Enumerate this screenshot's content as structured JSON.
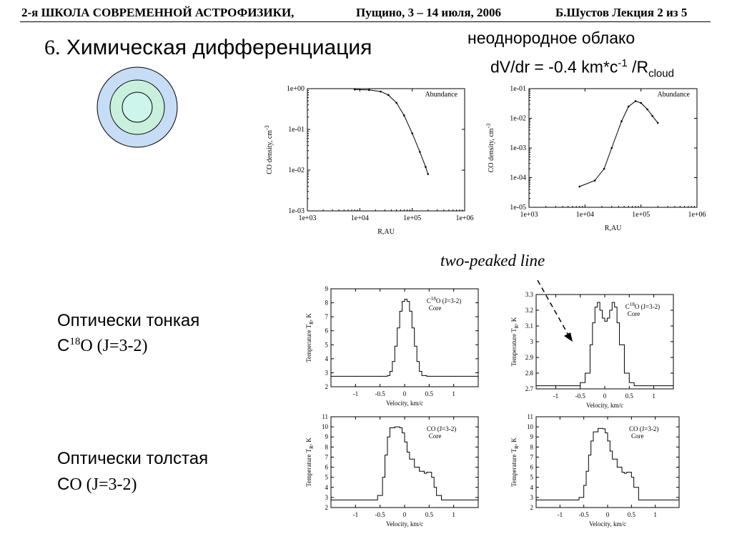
{
  "header": {
    "school": "2-я ШКОЛА СОВРЕМЕННОЙ АСТРОФИЗИКИ,",
    "place_date": "Пущино, 3 – 14 июля, 2006",
    "lecture": "Б.Шустов Лекция 2 из 5"
  },
  "title": {
    "number": "6.",
    "text": "Химическая дифференциация"
  },
  "subtitle": {
    "line1": "неоднородное облако",
    "line2_main": "dV/dr = -0.4 km*c",
    "line2_sup": "-1",
    "line2_rest": " /R",
    "line2_sub": "cloud"
  },
  "diagram": {
    "fills": [
      "#c7dcf5",
      "#c9f0dc",
      "#cdf5ec"
    ]
  },
  "annotation": "two-peaked line",
  "labels": {
    "thin_title": "Оптически тонкая",
    "thin_species_c": "C",
    "thin_species_sup": "18",
    "thin_species_rest": "O (J=3-2)",
    "thick_title": "Оптически толстая",
    "thick_species_c": "C",
    "thick_species_rest": "O (J=3-2)"
  },
  "chart_data": [
    {
      "id": "abund1",
      "type": "line",
      "xscale": "log",
      "yscale": "log",
      "xlabel": "R,AU",
      "ylabel": "CO density, cm",
      "ylabel_sup": "-3",
      "legend": "Abundance",
      "xlim": [
        1000,
        1000000
      ],
      "ylim": [
        0.001,
        1
      ],
      "xticks": [
        1000,
        10000,
        100000,
        1000000
      ],
      "xticklabels": [
        "1e+03",
        "1e+04",
        "1e+05",
        "1e+06"
      ],
      "yticks": [
        0.001,
        0.01,
        0.1,
        1
      ],
      "yticklabels": [
        "1e-03",
        "1e-02",
        "1e-01",
        "1e+00"
      ],
      "series": [
        {
          "x": [
            8000,
            15000,
            25000,
            35000,
            50000,
            70000,
            100000,
            140000,
            180000,
            200000
          ],
          "y": [
            0.95,
            0.93,
            0.85,
            0.7,
            0.45,
            0.22,
            0.08,
            0.028,
            0.012,
            0.008
          ]
        }
      ]
    },
    {
      "id": "abund2",
      "type": "line",
      "xscale": "log",
      "yscale": "log",
      "xlabel": "R,AU",
      "ylabel": "CO density, cm",
      "ylabel_sup": "-3",
      "legend": "Abundance",
      "xlim": [
        1000,
        1000000
      ],
      "ylim": [
        1e-05,
        0.1
      ],
      "xticks": [
        1000,
        10000,
        100000,
        1000000
      ],
      "xticklabels": [
        "1e+03",
        "1e+04",
        "1e+05",
        "1e+06"
      ],
      "yticks": [
        1e-05,
        0.0001,
        0.001,
        0.01,
        0.1
      ],
      "yticklabels": [
        "1e-05",
        "1e-04",
        "1e-03",
        "1e-02",
        "1e-01"
      ],
      "series": [
        {
          "x": [
            8000,
            15000,
            22000,
            30000,
            45000,
            60000,
            80000,
            100000,
            130000,
            160000,
            200000
          ],
          "y": [
            5e-05,
            8e-05,
            0.0002,
            0.001,
            0.008,
            0.025,
            0.038,
            0.033,
            0.02,
            0.012,
            0.007
          ]
        }
      ]
    },
    {
      "id": "c18o_core",
      "type": "line",
      "step": true,
      "xlabel": "Velocity, km/c",
      "ylabel": "Temperature T",
      "ylabel_sub": "R",
      "ylabel_rest": ", K",
      "legend_line1": "C",
      "legend_sup": "18",
      "legend_line1_rest": "O (J=3-2)",
      "legend_line2": "Core",
      "xlim": [
        -1.5,
        1.5
      ],
      "ylim": [
        2,
        9
      ],
      "xticks": [
        -1,
        -0.5,
        0,
        0.5,
        1
      ],
      "xticklabels": [
        "-1",
        "-0.5",
        "0",
        "0.5",
        "1"
      ],
      "yticks": [
        2,
        3,
        4,
        5,
        6,
        7,
        8,
        9
      ],
      "yticklabels": [
        "2",
        "3",
        "4",
        "5",
        "6",
        "7",
        "8",
        "9"
      ],
      "series": [
        {
          "x": [
            -1.5,
            -0.45,
            -0.35,
            -0.3,
            -0.25,
            -0.2,
            -0.15,
            -0.1,
            -0.05,
            0,
            0.05,
            0.1,
            0.15,
            0.2,
            0.25,
            0.3,
            0.35,
            0.45,
            1.5
          ],
          "y": [
            2.75,
            2.75,
            2.8,
            3.1,
            3.8,
            4.9,
            6.2,
            7.4,
            8.1,
            8.25,
            8.1,
            7.4,
            6.2,
            4.9,
            3.8,
            3.1,
            2.8,
            2.75,
            2.75
          ]
        }
      ]
    },
    {
      "id": "c18o_two_peaked",
      "type": "line",
      "step": true,
      "xlabel": "Velocity, km/c",
      "ylabel": "Temperature T",
      "ylabel_sub": "R",
      "ylabel_rest": ", K",
      "legend_line1": "C",
      "legend_sup": "18",
      "legend_line1_rest": "O (J=3-2)",
      "legend_line2": "Core",
      "xlim": [
        -1.4,
        1.4
      ],
      "ylim": [
        2.7,
        3.3
      ],
      "xticks": [
        -1,
        -0.5,
        0,
        0.5,
        1
      ],
      "xticklabels": [
        "-1",
        "-0.5",
        "0",
        "0.5",
        "1"
      ],
      "yticks": [
        2.7,
        2.8,
        2.9,
        3,
        3.1,
        3.2,
        3.3
      ],
      "yticklabels": [
        "2.7",
        "2.8",
        "2.9",
        "3",
        "3.1",
        "3.2",
        "3.3"
      ],
      "series": [
        {
          "x": [
            -1.4,
            -0.6,
            -0.5,
            -0.4,
            -0.3,
            -0.25,
            -0.2,
            -0.15,
            -0.1,
            -0.05,
            0,
            0.05,
            0.1,
            0.15,
            0.2,
            0.25,
            0.3,
            0.4,
            0.5,
            0.6,
            1.4
          ],
          "y": [
            2.72,
            2.72,
            2.74,
            2.8,
            2.98,
            3.12,
            3.22,
            3.25,
            3.2,
            3.15,
            3.13,
            3.15,
            3.2,
            3.25,
            3.22,
            3.12,
            2.98,
            2.8,
            2.74,
            2.72,
            2.72
          ]
        }
      ]
    },
    {
      "id": "co_core_1",
      "type": "line",
      "step": true,
      "xlabel": "Velocity, km/c",
      "ylabel": "Temperature T",
      "ylabel_sub": "R",
      "ylabel_rest": ", K",
      "legend_line1": "CO (J=3-2)",
      "legend_line2": "Core",
      "xlim": [
        -1.5,
        1.5
      ],
      "ylim": [
        2,
        11
      ],
      "xticks": [
        -1,
        -0.5,
        0,
        0.5,
        1
      ],
      "xticklabels": [
        "-1",
        "-0.5",
        "0",
        "0.5",
        "1"
      ],
      "yticks": [
        2,
        3,
        4,
        5,
        6,
        7,
        8,
        9,
        10,
        11
      ],
      "yticklabels": [
        "2",
        "3",
        "4",
        "5",
        "6",
        "7",
        "8",
        "9",
        "10",
        "11"
      ],
      "series": [
        {
          "x": [
            -1.5,
            -0.65,
            -0.55,
            -0.45,
            -0.4,
            -0.35,
            -0.3,
            -0.2,
            -0.1,
            -0.05,
            0,
            0.05,
            0.1,
            0.2,
            0.3,
            0.4,
            0.45,
            0.5,
            0.55,
            0.6,
            0.65,
            0.75,
            1.5
          ],
          "y": [
            2.75,
            2.75,
            3.2,
            5.0,
            7.2,
            9.0,
            9.9,
            10.0,
            9.9,
            9.4,
            8.5,
            7.5,
            6.8,
            6.0,
            5.6,
            5.4,
            5.5,
            5.5,
            5.0,
            4.0,
            3.2,
            2.75,
            2.75
          ]
        }
      ]
    },
    {
      "id": "co_core_2",
      "type": "line",
      "step": true,
      "xlabel": "Velocity, km/c",
      "ylabel": "Temperature T",
      "ylabel_sub": "R",
      "ylabel_rest": ", K",
      "legend_line1": "CO (J=3-2)",
      "legend_line2": "Core",
      "xlim": [
        -1.5,
        1.5
      ],
      "ylim": [
        2,
        11
      ],
      "xticks": [
        -1,
        -0.5,
        0,
        0.5,
        1
      ],
      "xticklabels": [
        "-1",
        "-0.5",
        "0",
        "0.5",
        "1"
      ],
      "yticks": [
        2,
        3,
        4,
        5,
        6,
        7,
        8,
        9,
        10,
        11
      ],
      "yticklabels": [
        "2",
        "3",
        "4",
        "5",
        "6",
        "7",
        "8",
        "9",
        "10",
        "11"
      ],
      "series": [
        {
          "x": [
            -1.5,
            -0.7,
            -0.6,
            -0.5,
            -0.45,
            -0.4,
            -0.35,
            -0.3,
            -0.2,
            -0.1,
            -0.05,
            0,
            0.05,
            0.1,
            0.2,
            0.3,
            0.35,
            0.4,
            0.45,
            0.5,
            0.55,
            0.65,
            1.5
          ],
          "y": [
            2.75,
            2.75,
            3.0,
            4.2,
            5.6,
            7.2,
            8.6,
            9.5,
            9.85,
            9.8,
            9.4,
            8.6,
            7.6,
            6.8,
            6.0,
            5.5,
            5.4,
            5.5,
            5.5,
            5.0,
            4.0,
            2.75,
            2.75
          ]
        }
      ]
    }
  ]
}
